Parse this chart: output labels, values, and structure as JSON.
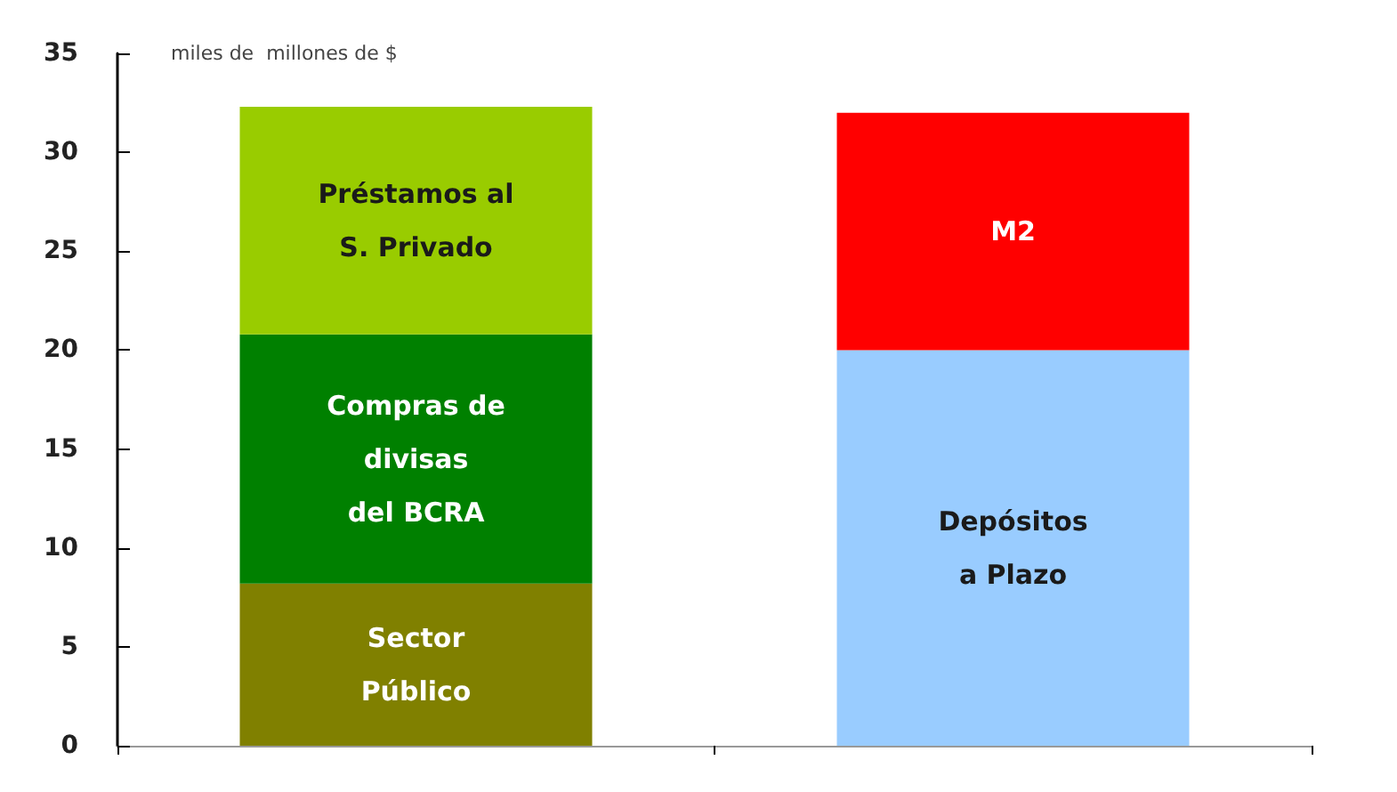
{
  "chart_data": {
    "type": "bar",
    "stacked": true,
    "ylabel": "miles de  millones de $",
    "categories": [
      null,
      null
    ],
    "series": [
      {
        "name": "Sector\nPúblico",
        "color": "#808000",
        "values": [
          8.2,
          null
        ]
      },
      {
        "name": "Compras de\ndivisas\ndel BCRA",
        "color": "#008000",
        "values": [
          12.6,
          null
        ]
      },
      {
        "name": "Préstamos al\nS. Privado",
        "color": "#99cc00",
        "values": [
          11.5,
          null
        ]
      },
      {
        "name": "Depósitos\na Plazo",
        "color": "#99ccff",
        "values": [
          null,
          20
        ]
      },
      {
        "name": "M2",
        "color": "#ff0000",
        "values": [
          null,
          12
        ]
      }
    ],
    "ylim": [
      0,
      35
    ],
    "yticks": [
      0,
      5,
      10,
      15,
      20,
      25,
      30,
      35
    ],
    "grid": false,
    "legend": false
  }
}
